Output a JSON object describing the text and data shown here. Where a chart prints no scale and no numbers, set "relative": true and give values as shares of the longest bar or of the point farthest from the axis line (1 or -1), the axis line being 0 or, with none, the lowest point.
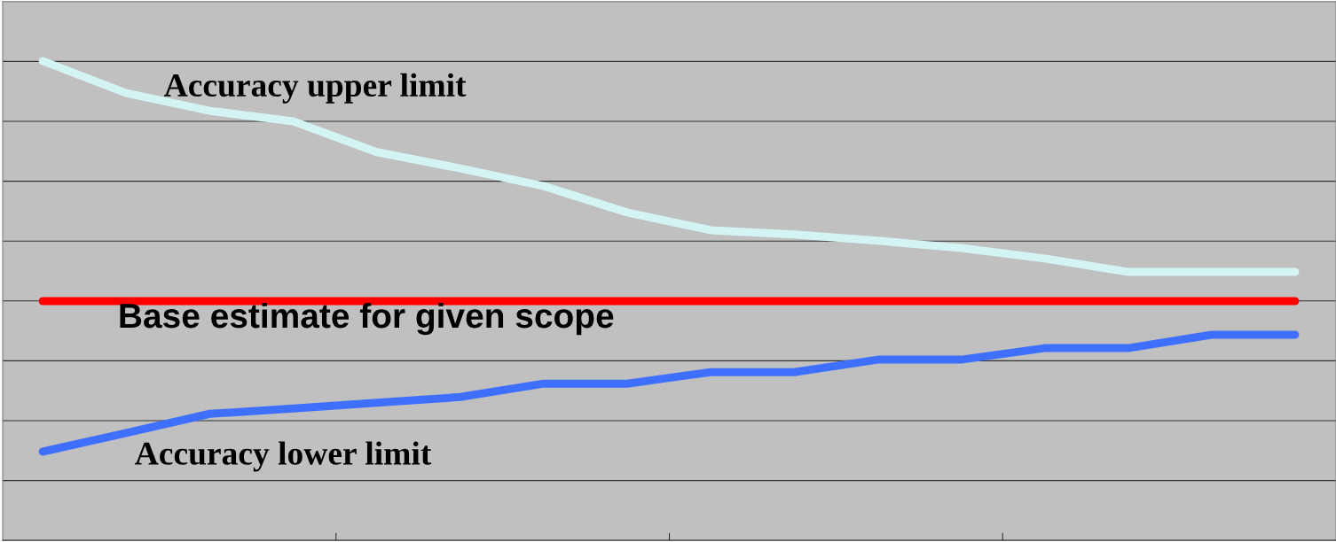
{
  "chart_data": {
    "type": "line",
    "relative": true,
    "grid": "y",
    "legend": false,
    "marker": "none",
    "line_style": "solid",
    "categories": [
      null,
      null,
      null,
      null,
      null,
      null,
      null,
      null,
      null,
      null,
      null,
      null,
      null,
      null,
      null,
      null
    ],
    "series": [
      {
        "name": "Accuracy upper limit",
        "color": "#d4f4f4",
        "values": [
          1.0,
          0.933,
          0.896,
          0.874,
          0.81,
          0.776,
          0.739,
          0.684,
          0.647,
          0.638,
          0.625,
          0.61,
          0.588,
          0.56,
          0.56,
          0.56
        ]
      },
      {
        "name": "Base estimate for given scope",
        "color": "#ff0000",
        "values": [
          0.499,
          0.499,
          0.499,
          0.499,
          0.499,
          0.499,
          0.499,
          0.499,
          0.499,
          0.499,
          0.499,
          0.499,
          0.499,
          0.499,
          0.499,
          0.499
        ]
      },
      {
        "name": "Accuracy lower limit",
        "color": "#3f6fff",
        "values": [
          0.185,
          0.224,
          0.264,
          0.275,
          0.287,
          0.299,
          0.327,
          0.327,
          0.351,
          0.351,
          0.377,
          0.377,
          0.401,
          0.401,
          0.429,
          0.429
        ]
      }
    ]
  }
}
